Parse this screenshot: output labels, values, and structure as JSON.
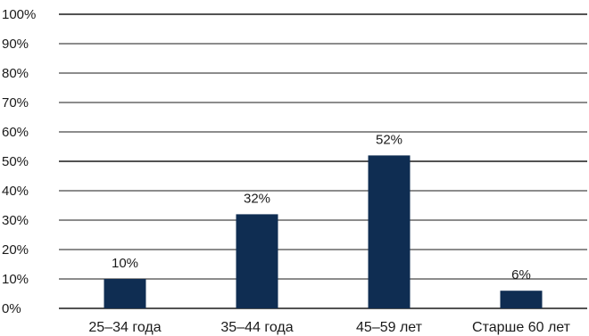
{
  "chart_data": {
    "type": "bar",
    "categories": [
      "25–34 года",
      "35–44 года",
      "45–59 лет",
      "Старше 60 лет"
    ],
    "values": [
      10,
      32,
      52,
      6
    ],
    "value_labels": [
      "10%",
      "32%",
      "52%",
      "6%"
    ],
    "ylim": [
      0,
      100
    ],
    "yticks": [
      0,
      10,
      20,
      30,
      40,
      50,
      60,
      70,
      80,
      90,
      100
    ],
    "ytick_labels": [
      "0%",
      "10%",
      "20%",
      "30%",
      "40%",
      "50%",
      "60%",
      "70%",
      "80%",
      "90%",
      "100%"
    ],
    "grid": true,
    "bar_color": "#0f2d52",
    "grid_color": "#1a1a1a"
  }
}
